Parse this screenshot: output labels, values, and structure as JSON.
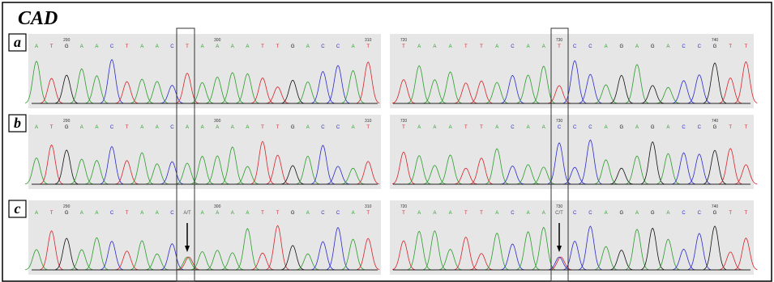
{
  "figure": {
    "title": "CAD",
    "panels": [
      {
        "label": "a",
        "left": {
          "positions": [
            290,
            300,
            310
          ],
          "bases": [
            "A",
            "T",
            "G",
            "A",
            "A",
            "C",
            "T",
            "A",
            "A",
            "C",
            "T",
            "A",
            "A",
            "A",
            "A",
            "T",
            "T",
            "G",
            "A",
            "C",
            "C",
            "A",
            "T"
          ]
        },
        "right": {
          "positions": [
            720,
            730,
            740
          ],
          "bases": [
            "T",
            "A",
            "A",
            "A",
            "T",
            "T",
            "A",
            "C",
            "A",
            "A",
            "T",
            "C",
            "C",
            "A",
            "G",
            "A",
            "G",
            "A",
            "C",
            "C",
            "G",
            "T",
            "T"
          ]
        }
      },
      {
        "label": "b",
        "left": {
          "positions": [
            290,
            300,
            310
          ],
          "bases": [
            "A",
            "T",
            "G",
            "A",
            "A",
            "C",
            "T",
            "A",
            "A",
            "C",
            "A",
            "A",
            "A",
            "A",
            "A",
            "T",
            "T",
            "G",
            "A",
            "C",
            "C",
            "A",
            "T"
          ]
        },
        "right": {
          "positions": [
            720,
            730,
            740
          ],
          "bases": [
            "T",
            "A",
            "A",
            "A",
            "T",
            "T",
            "A",
            "C",
            "A",
            "A",
            "C",
            "C",
            "C",
            "A",
            "G",
            "A",
            "G",
            "A",
            "C",
            "C",
            "G",
            "T",
            "T"
          ]
        }
      },
      {
        "label": "c",
        "left": {
          "positions": [
            290,
            300,
            310
          ],
          "bases": [
            "A",
            "T",
            "G",
            "A",
            "A",
            "C",
            "T",
            "A",
            "A",
            "C",
            "A/T",
            "A",
            "A",
            "A",
            "A",
            "T",
            "T",
            "G",
            "A",
            "C",
            "C",
            "A",
            "T"
          ]
        },
        "right": {
          "positions": [
            720,
            730,
            740
          ],
          "bases": [
            "T",
            "A",
            "A",
            "A",
            "T",
            "T",
            "A",
            "C",
            "A",
            "A",
            "C/T",
            "C",
            "C",
            "A",
            "G",
            "A",
            "G",
            "A",
            "C",
            "C",
            "G",
            "T",
            "T"
          ]
        }
      }
    ]
  }
}
